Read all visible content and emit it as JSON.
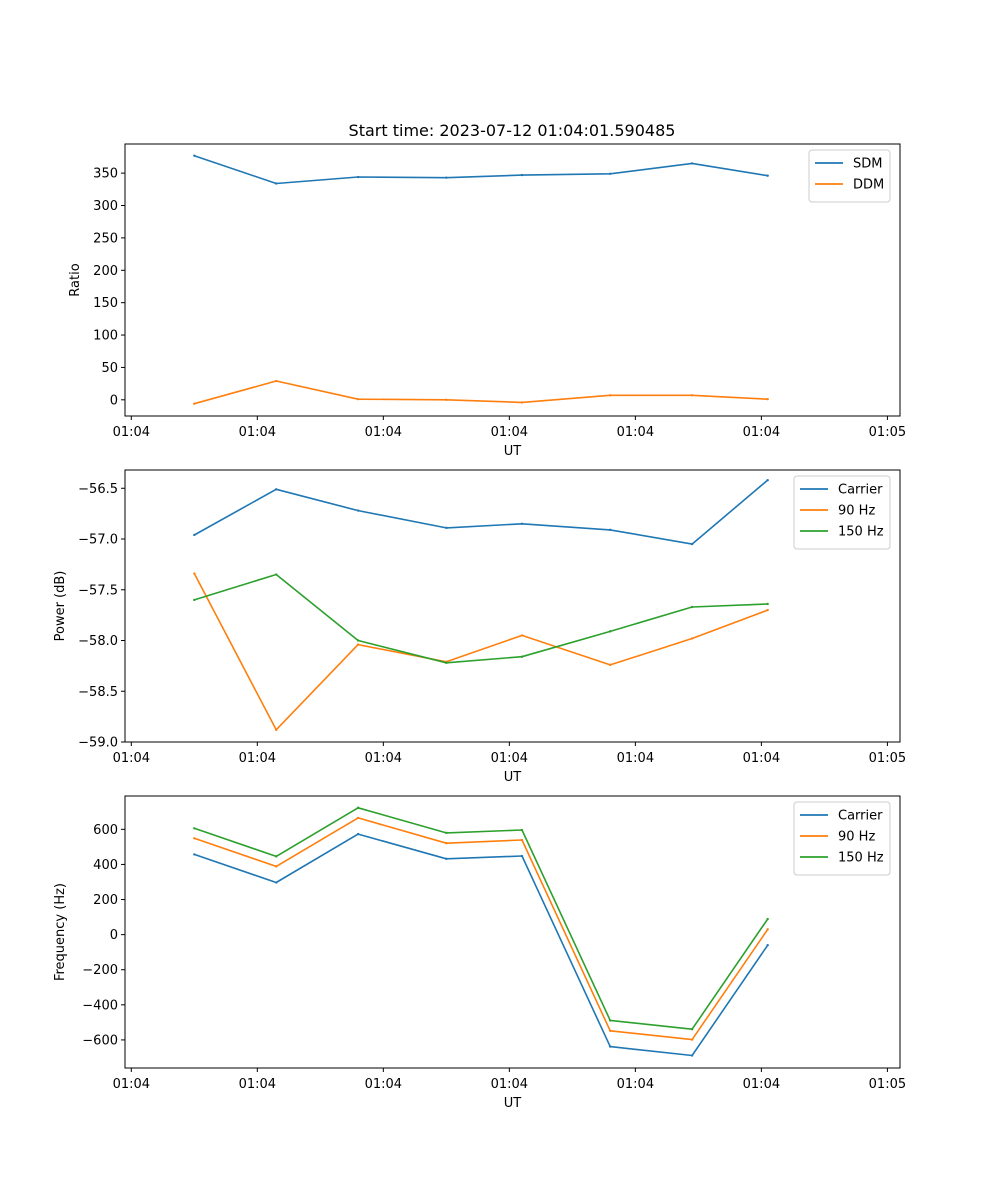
{
  "figure": {
    "title": "Start time: 2023-07-12 01:04:01.590485"
  },
  "chart_data": [
    {
      "type": "line",
      "title": "Start time: 2023-07-12 01:04:01.590485",
      "xlabel": "UT",
      "ylabel": "Ratio",
      "xlim": [
        -0.55,
        5.6
      ],
      "ylim": [
        -25,
        395
      ],
      "x": [
        0,
        0.65,
        1.3,
        2.0,
        2.6,
        3.3,
        3.95,
        4.55
      ],
      "xticks": [
        -0.5,
        0.5,
        1.5,
        2.5,
        3.5,
        4.5,
        5.5
      ],
      "xtick_labels": [
        "01:04",
        "01:04",
        "01:04",
        "01:04",
        "01:04",
        "01:04",
        "01:05"
      ],
      "yticks": [
        0,
        50,
        100,
        150,
        200,
        250,
        300,
        350
      ],
      "ytick_labels": [
        "0",
        "50",
        "100",
        "150",
        "200",
        "250",
        "300",
        "350"
      ],
      "legend": "top-right",
      "series": [
        {
          "name": "SDM",
          "color": "#1f77b4",
          "values": [
            377,
            334,
            344,
            343,
            347,
            349,
            365,
            346
          ]
        },
        {
          "name": "DDM",
          "color": "#ff7f0e",
          "values": [
            -6,
            29,
            1,
            0,
            -4,
            7,
            7,
            1
          ]
        }
      ]
    },
    {
      "type": "line",
      "title": "",
      "xlabel": "UT",
      "ylabel": "Power (dB)",
      "xlim": [
        -0.55,
        5.6
      ],
      "ylim": [
        -59.0,
        -56.32
      ],
      "x": [
        0,
        0.65,
        1.3,
        2.0,
        2.6,
        3.3,
        3.95,
        4.55
      ],
      "xticks": [
        -0.5,
        0.5,
        1.5,
        2.5,
        3.5,
        4.5,
        5.5
      ],
      "xtick_labels": [
        "01:04",
        "01:04",
        "01:04",
        "01:04",
        "01:04",
        "01:04",
        "01:05"
      ],
      "yticks": [
        -59.0,
        -58.5,
        -58.0,
        -57.5,
        -57.0,
        -56.5
      ],
      "ytick_labels": [
        "−59.0",
        "−58.5",
        "−58.0",
        "−57.5",
        "−57.0",
        "−56.5"
      ],
      "legend": "top-right",
      "series": [
        {
          "name": "Carrier",
          "color": "#1f77b4",
          "values": [
            -56.96,
            -56.51,
            -56.72,
            -56.89,
            -56.85,
            -56.91,
            -57.05,
            -56.42
          ]
        },
        {
          "name": "90 Hz",
          "color": "#ff7f0e",
          "values": [
            -57.34,
            -58.88,
            -58.04,
            -58.21,
            -57.95,
            -58.24,
            -57.98,
            -57.7
          ]
        },
        {
          "name": "150 Hz",
          "color": "#2ca02c",
          "values": [
            -57.6,
            -57.35,
            -58.0,
            -58.22,
            -58.16,
            -57.91,
            -57.67,
            -57.64
          ]
        }
      ]
    },
    {
      "type": "line",
      "title": "",
      "xlabel": "UT",
      "ylabel": "Frequency (Hz)",
      "xlim": [
        -0.55,
        5.6
      ],
      "ylim": [
        -760,
        790
      ],
      "x": [
        0,
        0.65,
        1.3,
        2.0,
        2.6,
        3.3,
        3.95,
        4.55
      ],
      "xticks": [
        -0.5,
        0.5,
        1.5,
        2.5,
        3.5,
        4.5,
        5.5
      ],
      "xtick_labels": [
        "01:04",
        "01:04",
        "01:04",
        "01:04",
        "01:04",
        "01:04",
        "01:05"
      ],
      "yticks": [
        -600,
        -400,
        -200,
        0,
        200,
        400,
        600
      ],
      "ytick_labels": [
        "−600",
        "−400",
        "−200",
        "0",
        "200",
        "400",
        "600"
      ],
      "legend": "top-right",
      "series": [
        {
          "name": "Carrier",
          "color": "#1f77b4",
          "values": [
            457,
            297,
            573,
            432,
            448,
            -638,
            -689,
            -60
          ]
        },
        {
          "name": "90 Hz",
          "color": "#ff7f0e",
          "values": [
            549,
            389,
            665,
            521,
            539,
            -548,
            -598,
            30
          ]
        },
        {
          "name": "150 Hz",
          "color": "#2ca02c",
          "values": [
            606,
            446,
            723,
            580,
            596,
            -489,
            -539,
            89
          ]
        }
      ]
    }
  ]
}
